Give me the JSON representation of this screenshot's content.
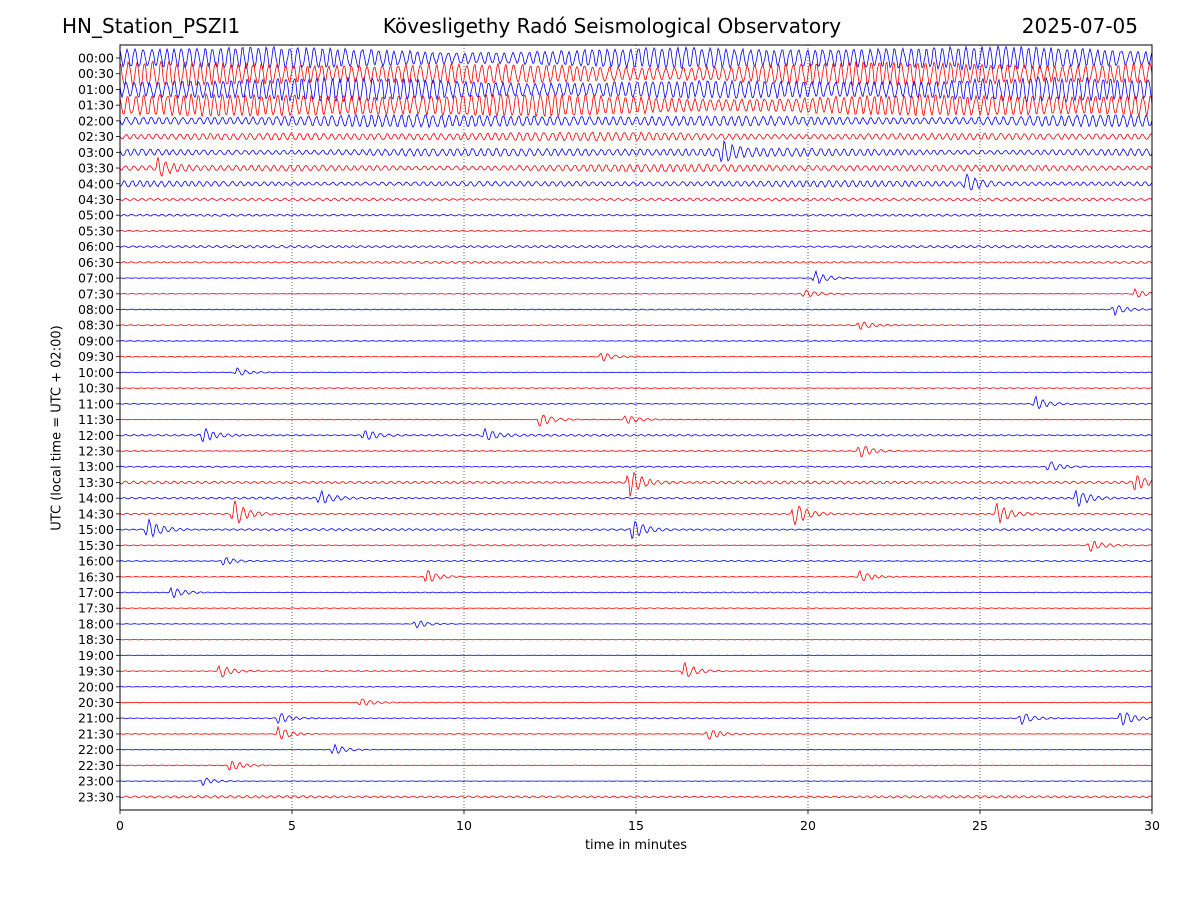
{
  "header": {
    "station": "HN_Station_PSZI1",
    "observatory": "Kövesligethy Radó Seismological Observatory",
    "date": "2025-07-05"
  },
  "chart_data": {
    "type": "line",
    "title": "Kövesligethy Radó Seismological Observatory",
    "xlabel": "time in minutes",
    "ylabel": "UTC (local time = UTC + 02:00)",
    "xlim": [
      0,
      30
    ],
    "x_ticks": [
      0,
      5,
      10,
      15,
      20,
      25,
      30
    ],
    "vertical_gridlines_dotted": true,
    "trace_colors": [
      "#0000ff",
      "#ff0000"
    ],
    "rows": [
      {
        "label": "00:00",
        "level": 0.95,
        "events": []
      },
      {
        "label": "00:30",
        "level": 1.0,
        "events": []
      },
      {
        "label": "01:00",
        "level": 0.95,
        "events": []
      },
      {
        "label": "01:30",
        "level": 1.0,
        "events": []
      },
      {
        "label": "02:00",
        "level": 0.5,
        "events": []
      },
      {
        "label": "02:30",
        "level": 0.35,
        "events": []
      },
      {
        "label": "03:00",
        "level": 0.35,
        "events": [
          {
            "t": 17.5,
            "a": 0.6
          }
        ]
      },
      {
        "label": "03:30",
        "level": 0.3,
        "events": [
          {
            "t": 1.1,
            "a": 0.6
          }
        ]
      },
      {
        "label": "04:00",
        "level": 0.25,
        "events": [
          {
            "t": 24.6,
            "a": 0.5
          }
        ]
      },
      {
        "label": "04:30",
        "level": 0.12,
        "events": []
      },
      {
        "label": "05:00",
        "level": 0.08,
        "events": []
      },
      {
        "label": "05:30",
        "level": 0.05,
        "events": []
      },
      {
        "label": "06:00",
        "level": 0.1,
        "events": []
      },
      {
        "label": "06:30",
        "level": 0.08,
        "events": []
      },
      {
        "label": "07:00",
        "level": 0.03,
        "events": [
          {
            "t": 20.2,
            "a": 0.5
          }
        ]
      },
      {
        "label": "07:30",
        "level": 0.03,
        "events": [
          {
            "t": 19.9,
            "a": 0.3
          },
          {
            "t": 29.5,
            "a": 0.3
          }
        ]
      },
      {
        "label": "08:00",
        "level": 0.04,
        "events": [
          {
            "t": 28.9,
            "a": 0.4
          }
        ]
      },
      {
        "label": "08:30",
        "level": 0.04,
        "events": [
          {
            "t": 21.5,
            "a": 0.3
          }
        ]
      },
      {
        "label": "09:00",
        "level": 0.03,
        "events": []
      },
      {
        "label": "09:30",
        "level": 0.04,
        "events": [
          {
            "t": 14.0,
            "a": 0.3
          }
        ]
      },
      {
        "label": "10:00",
        "level": 0.03,
        "events": [
          {
            "t": 3.4,
            "a": 0.3
          }
        ]
      },
      {
        "label": "10:30",
        "level": 0.03,
        "events": []
      },
      {
        "label": "11:00",
        "level": 0.04,
        "events": [
          {
            "t": 26.6,
            "a": 0.5
          }
        ]
      },
      {
        "label": "11:30",
        "level": 0.03,
        "events": [
          {
            "t": 12.2,
            "a": 0.5
          },
          {
            "t": 14.7,
            "a": 0.3
          }
        ]
      },
      {
        "label": "12:00",
        "level": 0.08,
        "events": [
          {
            "t": 2.4,
            "a": 0.5
          },
          {
            "t": 7.1,
            "a": 0.4
          },
          {
            "t": 10.6,
            "a": 0.4
          }
        ]
      },
      {
        "label": "12:30",
        "level": 0.04,
        "events": [
          {
            "t": 21.5,
            "a": 0.5
          }
        ]
      },
      {
        "label": "13:00",
        "level": 0.05,
        "events": [
          {
            "t": 27.0,
            "a": 0.4
          }
        ]
      },
      {
        "label": "13:30",
        "level": 0.12,
        "events": [
          {
            "t": 14.8,
            "a": 1.0
          },
          {
            "t": 29.5,
            "a": 0.5
          }
        ]
      },
      {
        "label": "14:00",
        "level": 0.08,
        "events": [
          {
            "t": 5.8,
            "a": 0.5
          },
          {
            "t": 27.8,
            "a": 0.6
          }
        ]
      },
      {
        "label": "14:30",
        "level": 0.06,
        "events": [
          {
            "t": 3.3,
            "a": 0.9
          },
          {
            "t": 19.6,
            "a": 0.9
          },
          {
            "t": 25.5,
            "a": 0.8
          }
        ]
      },
      {
        "label": "15:00",
        "level": 0.08,
        "events": [
          {
            "t": 0.8,
            "a": 0.8
          },
          {
            "t": 14.9,
            "a": 0.7
          }
        ]
      },
      {
        "label": "15:30",
        "level": 0.05,
        "events": [
          {
            "t": 28.2,
            "a": 0.4
          }
        ]
      },
      {
        "label": "16:00",
        "level": 0.05,
        "events": [
          {
            "t": 3.0,
            "a": 0.3
          }
        ]
      },
      {
        "label": "16:30",
        "level": 0.04,
        "events": [
          {
            "t": 8.9,
            "a": 0.5
          },
          {
            "t": 21.5,
            "a": 0.4
          }
        ]
      },
      {
        "label": "17:00",
        "level": 0.04,
        "events": [
          {
            "t": 1.5,
            "a": 0.4
          }
        ]
      },
      {
        "label": "17:30",
        "level": 0.03,
        "events": []
      },
      {
        "label": "18:00",
        "level": 0.02,
        "events": [
          {
            "t": 8.6,
            "a": 0.3
          }
        ]
      },
      {
        "label": "18:30",
        "level": 0.02,
        "events": []
      },
      {
        "label": "19:00",
        "level": 0.02,
        "events": []
      },
      {
        "label": "19:30",
        "level": 0.03,
        "events": [
          {
            "t": 2.9,
            "a": 0.5
          },
          {
            "t": 16.4,
            "a": 0.6
          }
        ]
      },
      {
        "label": "20:00",
        "level": 0.03,
        "events": []
      },
      {
        "label": "20:30",
        "level": 0.03,
        "events": [
          {
            "t": 7.0,
            "a": 0.3
          }
        ]
      },
      {
        "label": "21:00",
        "level": 0.04,
        "events": [
          {
            "t": 4.6,
            "a": 0.4
          },
          {
            "t": 29.1,
            "a": 0.6
          },
          {
            "t": 26.2,
            "a": 0.4
          }
        ]
      },
      {
        "label": "21:30",
        "level": 0.03,
        "events": [
          {
            "t": 4.6,
            "a": 0.5
          },
          {
            "t": 17.1,
            "a": 0.4
          }
        ]
      },
      {
        "label": "22:00",
        "level": 0.02,
        "events": [
          {
            "t": 6.2,
            "a": 0.4
          }
        ]
      },
      {
        "label": "22:30",
        "level": 0.03,
        "events": [
          {
            "t": 3.2,
            "a": 0.4
          }
        ]
      },
      {
        "label": "23:00",
        "level": 0.02,
        "events": [
          {
            "t": 2.4,
            "a": 0.3
          }
        ]
      },
      {
        "label": "23:30",
        "level": 0.1,
        "events": []
      }
    ]
  }
}
